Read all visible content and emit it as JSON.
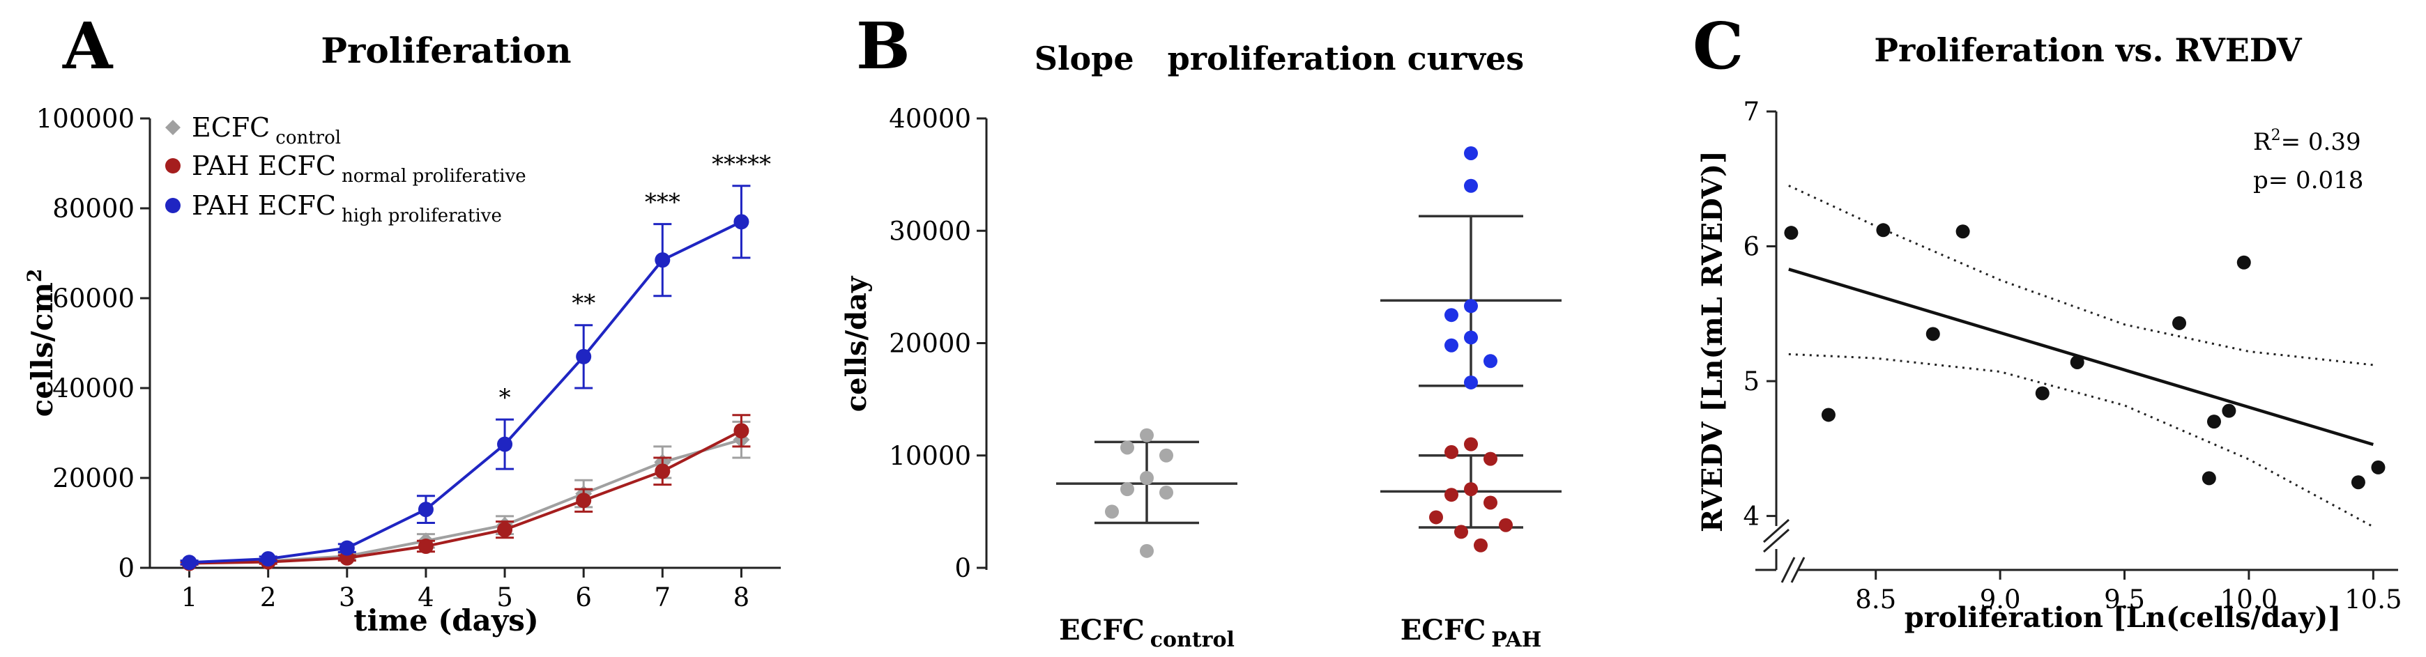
{
  "chart_data": [
    {
      "panel": "A",
      "type": "line",
      "title": "Proliferation",
      "xlabel": "time (days)",
      "ylabel": "cells/cm",
      "ylabel_sup": "2",
      "x": [
        1,
        2,
        3,
        4,
        5,
        6,
        7,
        8
      ],
      "xlim": [
        0.5,
        8.5
      ],
      "ylim": [
        0,
        100000
      ],
      "yticks": [
        0,
        20000,
        40000,
        60000,
        80000,
        100000
      ],
      "series": [
        {
          "name": "ECFC",
          "sub": "control",
          "color": "#a0a0a0",
          "marker": "diamond",
          "values": [
            1000,
            1500,
            2600,
            6000,
            9500,
            16500,
            23500,
            28500
          ],
          "err": [
            300,
            400,
            700,
            1500,
            2000,
            3000,
            3500,
            4000
          ]
        },
        {
          "name": "PAH ECFC",
          "sub": "normal proliferative",
          "color": "#a51e1e",
          "marker": "circle",
          "values": [
            1000,
            1300,
            2200,
            4800,
            8500,
            15000,
            21500,
            30500
          ],
          "err": [
            300,
            400,
            600,
            1200,
            1800,
            2500,
            3000,
            3500
          ]
        },
        {
          "name": "PAH ECFC",
          "sub": "high proliferative",
          "color": "#1f25c2",
          "marker": "circle",
          "values": [
            1200,
            2000,
            4400,
            13000,
            27500,
            47000,
            68500,
            77000
          ],
          "err": [
            400,
            500,
            900,
            3000,
            5500,
            7000,
            8000,
            8000
          ]
        }
      ],
      "significance": [
        {
          "x": 5,
          "label": "*"
        },
        {
          "x": 6,
          "label": "**"
        },
        {
          "x": 7,
          "label": "***"
        },
        {
          "x": 8,
          "label": "*****"
        }
      ]
    },
    {
      "panel": "B",
      "type": "scatter",
      "title": "Slope   proliferation curves",
      "ylabel": "cells/day",
      "ylim": [
        0,
        40000
      ],
      "yticks": [
        0,
        10000,
        20000,
        30000,
        40000
      ],
      "groups": [
        {
          "name": "ECFC",
          "sub": "control",
          "mean": 7500,
          "sd_low": 4000,
          "sd_high": 11200,
          "points": [
            {
              "v": 11800,
              "c": "#a8a8a8"
            },
            {
              "v": 10700,
              "c": "#a8a8a8"
            },
            {
              "v": 10000,
              "c": "#a8a8a8"
            },
            {
              "v": 8000,
              "c": "#a8a8a8"
            },
            {
              "v": 7000,
              "c": "#a8a8a8"
            },
            {
              "v": 6700,
              "c": "#a8a8a8"
            },
            {
              "v": 5000,
              "c": "#a8a8a8"
            },
            {
              "v": 1500,
              "c": "#a8a8a8"
            }
          ]
        },
        {
          "name": "ECFC",
          "sub": "PAH",
          "mean": 6800,
          "sd_low": 3600,
          "sd_high": 10000,
          "mean2": 23800,
          "sd2_low": 16200,
          "sd2_high": 31300,
          "points": [
            {
              "v": 36900,
              "c": "#1e32e6"
            },
            {
              "v": 34000,
              "c": "#1e32e6"
            },
            {
              "v": 23300,
              "c": "#1e32e6"
            },
            {
              "v": 22500,
              "c": "#1e32e6"
            },
            {
              "v": 20500,
              "c": "#1e32e6"
            },
            {
              "v": 19800,
              "c": "#1e32e6"
            },
            {
              "v": 18400,
              "c": "#1e32e6"
            },
            {
              "v": 16500,
              "c": "#1e32e6"
            },
            {
              "v": 11000,
              "c": "#a51e1e"
            },
            {
              "v": 10300,
              "c": "#a51e1e"
            },
            {
              "v": 9700,
              "c": "#a51e1e"
            },
            {
              "v": 7000,
              "c": "#a51e1e"
            },
            {
              "v": 6500,
              "c": "#a51e1e"
            },
            {
              "v": 5800,
              "c": "#a51e1e"
            },
            {
              "v": 4500,
              "c": "#a51e1e"
            },
            {
              "v": 3800,
              "c": "#a51e1e"
            },
            {
              "v": 3200,
              "c": "#a51e1e"
            },
            {
              "v": 2000,
              "c": "#a51e1e"
            }
          ]
        }
      ]
    },
    {
      "panel": "C",
      "type": "scatter",
      "title": "Proliferation vs. RVEDV",
      "xlabel": "proliferation [Ln(cells/day)]",
      "ylabel": "RVEDV [Ln(mL RVEDV)]",
      "xlim": [
        8.1,
        10.6
      ],
      "ylim": [
        3.6,
        7
      ],
      "xticks": [
        8.5,
        9.0,
        9.5,
        10.0,
        10.5
      ],
      "xtick_labels": [
        "8.5",
        "9.0",
        "9.5",
        "10.0",
        "10.5"
      ],
      "yticks": [
        4,
        5,
        6,
        7
      ],
      "annotation_r2": "R",
      "annotation_r2_sup": "2",
      "annotation_r2_value": "= 0.39",
      "annotation_p": "p= 0.018",
      "points": [
        {
          "x": 8.16,
          "y": 6.1
        },
        {
          "x": 8.31,
          "y": 4.75
        },
        {
          "x": 8.53,
          "y": 6.12
        },
        {
          "x": 8.73,
          "y": 5.35
        },
        {
          "x": 8.85,
          "y": 6.11
        },
        {
          "x": 9.17,
          "y": 4.91
        },
        {
          "x": 9.31,
          "y": 5.14
        },
        {
          "x": 9.72,
          "y": 5.43
        },
        {
          "x": 9.84,
          "y": 4.28
        },
        {
          "x": 9.86,
          "y": 4.7
        },
        {
          "x": 9.92,
          "y": 4.78
        },
        {
          "x": 9.98,
          "y": 5.88
        },
        {
          "x": 10.44,
          "y": 4.25
        },
        {
          "x": 10.52,
          "y": 4.36
        }
      ],
      "fit": {
        "x0": 8.15,
        "y0": 5.83,
        "x1": 10.5,
        "y1": 4.53
      },
      "ci_upper": [
        [
          8.15,
          6.45
        ],
        [
          8.5,
          6.15
        ],
        [
          9.0,
          5.75
        ],
        [
          9.5,
          5.42
        ],
        [
          10.0,
          5.22
        ],
        [
          10.5,
          5.12
        ]
      ],
      "ci_lower": [
        [
          8.15,
          5.2
        ],
        [
          8.5,
          5.17
        ],
        [
          9.0,
          5.07
        ],
        [
          9.5,
          4.82
        ],
        [
          10.0,
          4.42
        ],
        [
          10.5,
          3.92
        ]
      ]
    }
  ]
}
